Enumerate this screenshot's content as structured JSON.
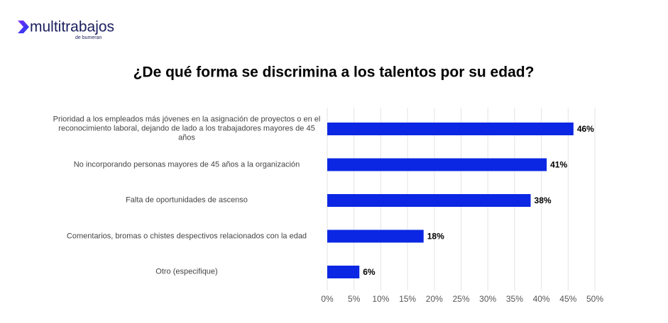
{
  "logo": {
    "name": "multitrabajos",
    "sub": "de bumeran"
  },
  "chart_data": {
    "type": "bar",
    "orientation": "horizontal",
    "title": "¿De qué forma se discrimina a los talentos por su edad?",
    "categories": [
      "Prioridad a los empleados más jóvenes en la asignación de proyectos o en el reconocimiento laboral, dejando de lado a los trabajadores mayores de 45 años",
      "No incorporando personas mayores de 45 años a la organización",
      "Falta de oportunidades de ascenso",
      "Comentarios, bromas o chistes despectivos relacionados con la edad",
      "Otro (especifique)"
    ],
    "values": [
      46,
      41,
      38,
      18,
      6
    ],
    "value_labels": [
      "46%",
      "41%",
      "38%",
      "18%",
      "6%"
    ],
    "color": "#0b27e3",
    "xlim": [
      0,
      50
    ],
    "xticks": [
      {
        "value": 0,
        "label": "0%"
      },
      {
        "value": 5,
        "label": "5%"
      },
      {
        "value": 10,
        "label": "10%"
      },
      {
        "value": 15,
        "label": "15%"
      },
      {
        "value": 20,
        "label": "20%"
      },
      {
        "value": 25,
        "label": "25%"
      },
      {
        "value": 30,
        "label": "30%"
      },
      {
        "value": 35,
        "label": "35%"
      },
      {
        "value": 40,
        "label": "40%"
      },
      {
        "value": 45,
        "label": "45%"
      },
      {
        "value": 50,
        "label": "50%"
      }
    ],
    "grid": true
  }
}
